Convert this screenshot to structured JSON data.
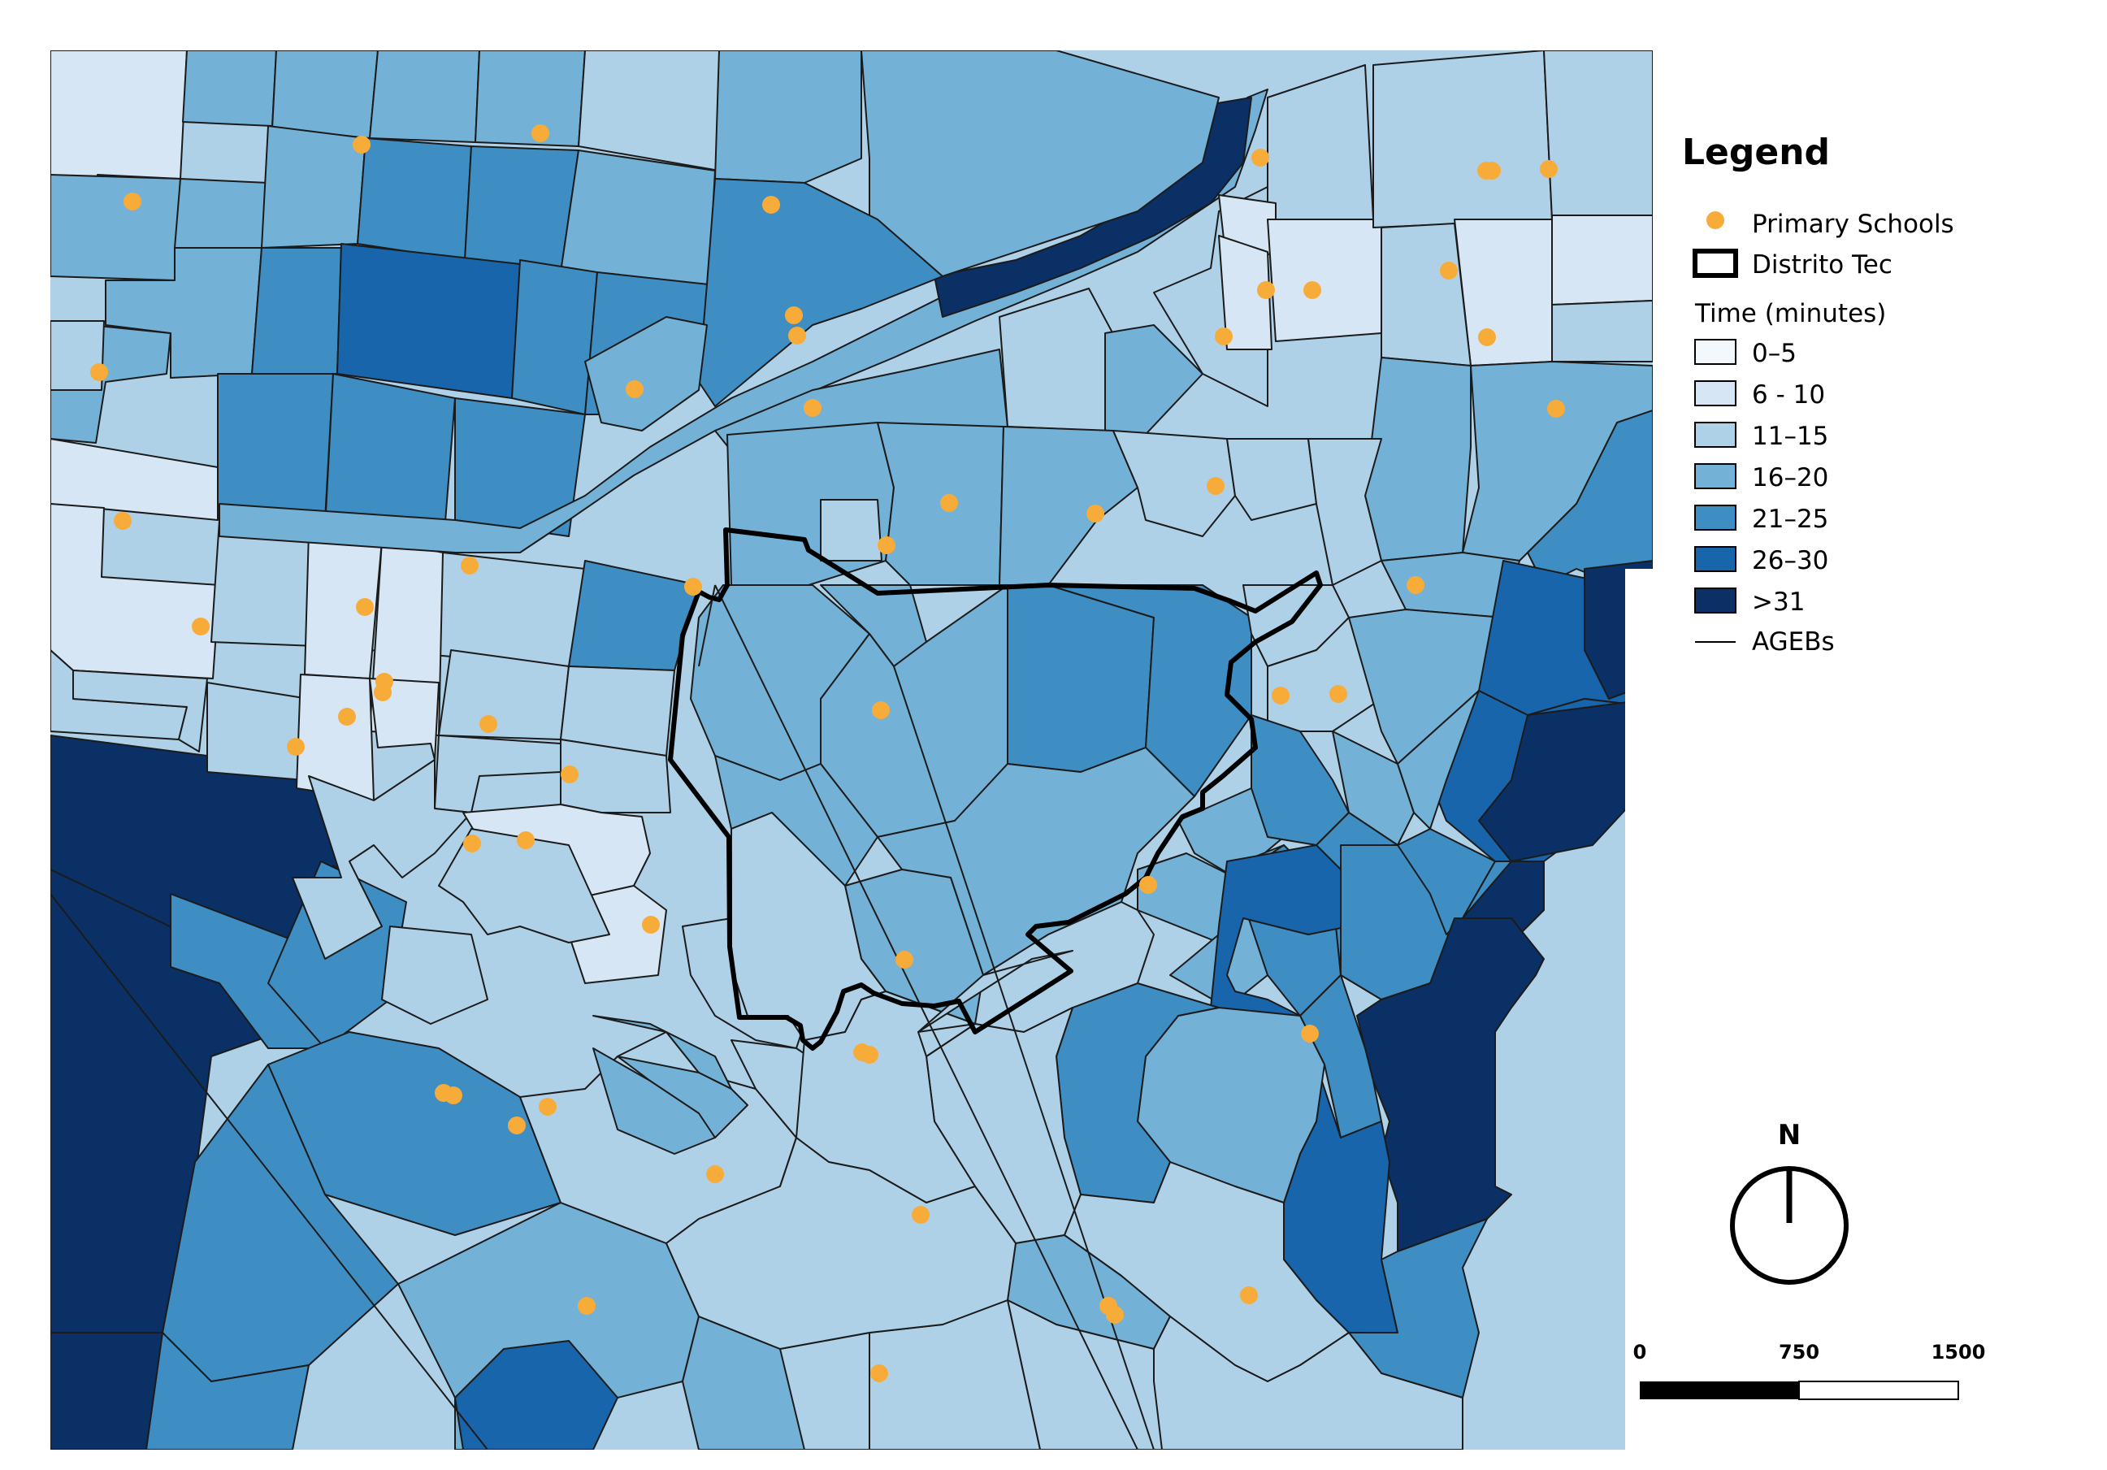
{
  "legend": {
    "title": "Legend",
    "schools_label": "Primary Schools",
    "district_label": "Distrito Tec",
    "time_label": "Time (minutes)",
    "agebs_label": "AGEBs",
    "classes": [
      {
        "label": "0–5",
        "color": "#f3f8fd"
      },
      {
        "label": "6 - 10",
        "color": "#d6e6f4"
      },
      {
        "label": "11–15",
        "color": "#afd1e7"
      },
      {
        "label": "16–20",
        "color": "#74b1d7"
      },
      {
        "label": "21–25",
        "color": "#3e8ec4"
      },
      {
        "label": "26–30",
        "color": "#1865ab"
      },
      {
        "label": ">31",
        "color": "#0a3065"
      }
    ]
  },
  "colors": {
    "school": "#f7ac3a",
    "boundary": "#000000",
    "agebs": "#1b1b1b"
  },
  "north_arrow": {
    "label": "N"
  },
  "scale_bar": {
    "labels": [
      "0",
      "750",
      "1500"
    ]
  }
}
